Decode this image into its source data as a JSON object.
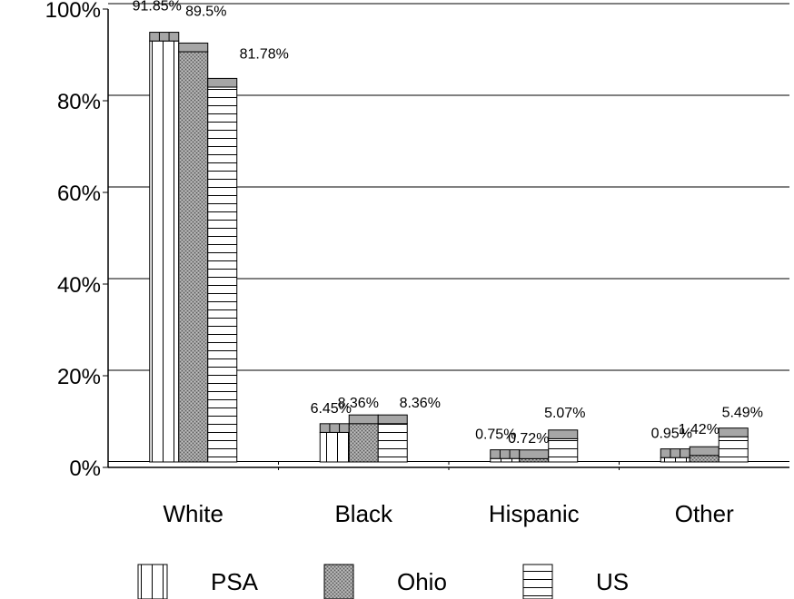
{
  "chart_data": {
    "type": "bar",
    "categories": [
      "White",
      "Black",
      "Hispanic",
      "Other"
    ],
    "series": [
      {
        "name": "PSA",
        "values": [
          91.85,
          6.45,
          0.75,
          0.95
        ],
        "labels": [
          "91.85%",
          "6.45%",
          "0.75%",
          "0.95%"
        ]
      },
      {
        "name": "Ohio",
        "values": [
          89.5,
          8.36,
          0.72,
          1.42
        ],
        "labels": [
          "89.5%",
          "8.36%",
          "0.72%",
          "1.42%"
        ]
      },
      {
        "name": "US",
        "values": [
          81.78,
          8.36,
          5.07,
          5.49
        ],
        "labels": [
          "81.78%",
          "8.36%",
          "5.07%",
          "5.49%"
        ]
      }
    ],
    "ylim": [
      0,
      100
    ],
    "yticks": [
      0,
      20,
      40,
      60,
      80,
      100
    ],
    "ytick_labels": [
      "0%",
      "20%",
      "40%",
      "60%",
      "80%",
      "100%"
    ],
    "title": "",
    "xlabel": "",
    "ylabel": "",
    "grid": true,
    "legend_position": "bottom",
    "bar_style": "3d-outlined, patterned fills (PSA vertical lines, Ohio dotted grey, US horizontal lines)"
  },
  "colors": {
    "grid_line": "#000000",
    "bar_outline": "#000000",
    "bar_top_face": "#a6a6a6",
    "ohio_fill": "#8c8c8c"
  }
}
